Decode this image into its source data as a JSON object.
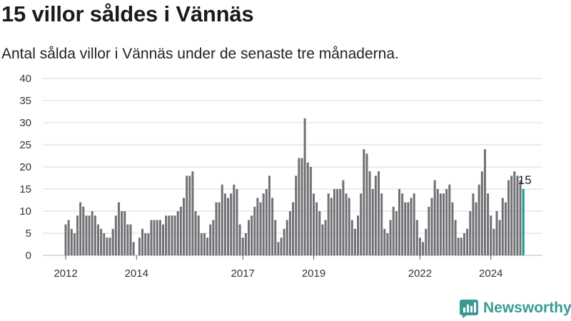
{
  "header": {
    "title": "15 villor såldes i Vännäs",
    "subtitle": "Antal sålda villor i Vännäs under de senaste tre månaderna."
  },
  "logo": {
    "text": "Newsworthy",
    "icon": "newsworthy-chart-icon",
    "color": "#3a9a93"
  },
  "colors": {
    "bar": "#707075",
    "highlight": "#1f9490",
    "grid": "#d9d9d9"
  },
  "chart_data": {
    "type": "bar",
    "title": "",
    "xlabel": "",
    "ylabel": "",
    "ylim": [
      0,
      40
    ],
    "yticks": [
      0,
      5,
      10,
      15,
      20,
      25,
      30,
      35,
      40
    ],
    "grid": true,
    "legend": "none",
    "x_start": "2012-03",
    "x_step": "1 month",
    "xtick_labels": [
      {
        "label": "2012",
        "index": 0
      },
      {
        "label": "2014",
        "index": 24
      },
      {
        "label": "2017",
        "index": 60
      },
      {
        "label": "2019",
        "index": 84
      },
      {
        "label": "2022",
        "index": 120
      },
      {
        "label": "2024",
        "index": 144
      }
    ],
    "values": [
      7,
      8,
      6,
      5,
      9,
      12,
      11,
      9,
      9,
      10,
      9,
      7,
      6,
      5,
      4,
      4,
      6,
      9,
      12,
      10,
      10,
      7,
      7,
      3,
      0,
      4,
      6,
      5,
      5,
      8,
      8,
      8,
      8,
      7,
      9,
      9,
      9,
      9,
      10,
      11,
      13,
      18,
      18,
      19,
      10,
      9,
      5,
      5,
      4,
      7,
      8,
      12,
      12,
      16,
      14,
      13,
      14,
      16,
      15,
      7,
      4,
      5,
      8,
      9,
      11,
      13,
      12,
      14,
      15,
      18,
      13,
      8,
      3,
      4,
      6,
      8,
      10,
      12,
      18,
      22,
      22,
      31,
      21,
      20,
      14,
      12,
      10,
      7,
      8,
      14,
      13,
      15,
      15,
      15,
      17,
      14,
      13,
      8,
      6,
      9,
      14,
      24,
      23,
      19,
      15,
      18,
      19,
      14,
      6,
      5,
      8,
      11,
      10,
      15,
      14,
      12,
      12,
      13,
      14,
      8,
      4,
      3,
      6,
      11,
      13,
      17,
      15,
      14,
      14,
      15,
      16,
      12,
      8,
      4,
      4,
      5,
      6,
      10,
      14,
      12,
      16,
      19,
      24,
      14,
      9,
      6,
      10,
      8,
      13,
      12,
      17,
      18,
      19,
      18,
      17,
      15
    ],
    "annotations": [
      {
        "index": 155,
        "text": "15"
      }
    ]
  }
}
